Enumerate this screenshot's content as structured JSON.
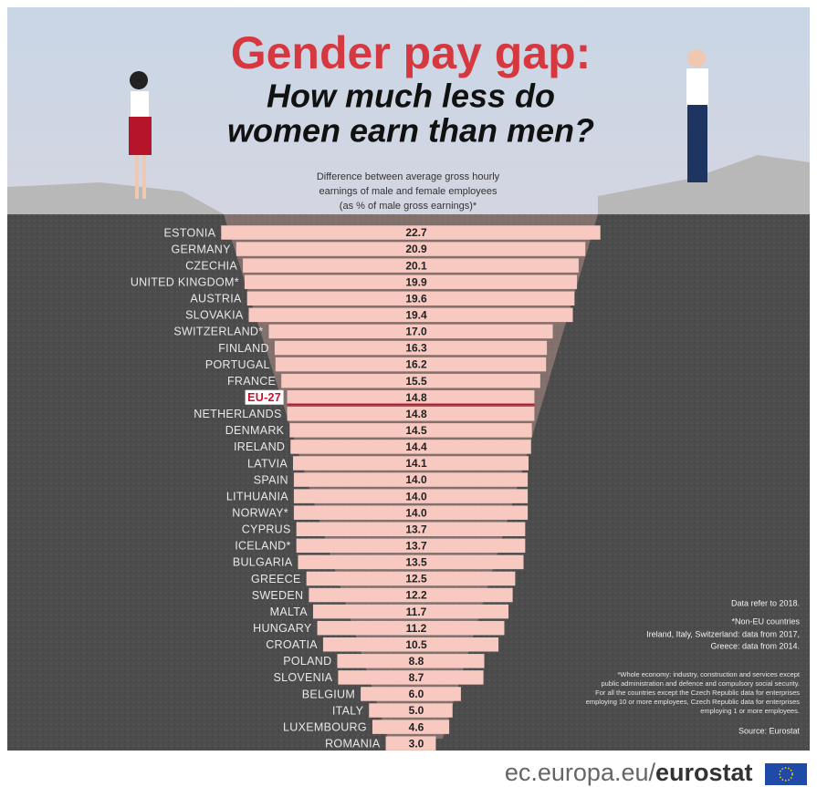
{
  "chart_data": {
    "type": "bar",
    "orientation": "horizontal-centered",
    "title": "Gender pay gap:",
    "subtitle": [
      "How much less do",
      "women earn than men?"
    ],
    "description": [
      "Difference between average gross hourly",
      "earnings of male and female employees",
      "(as % of male gross earnings)*"
    ],
    "categories": [
      "ESTONIA",
      "GERMANY",
      "CZECHIA",
      "UNITED KINGDOM*",
      "AUSTRIA",
      "SLOVAKIA",
      "SWITZERLAND*",
      "FINLAND",
      "PORTUGAL",
      "FRANCE",
      "EU-27",
      "NETHERLANDS",
      "DENMARK",
      "IRELAND",
      "LATVIA",
      "SPAIN",
      "LITHUANIA",
      "NORWAY*",
      "CYPRUS",
      "ICELAND*",
      "BULGARIA",
      "GREECE",
      "SWEDEN",
      "MALTA",
      "HUNGARY",
      "CROATIA",
      "POLAND",
      "SLOVENIA",
      "BELGIUM",
      "ITALY",
      "LUXEMBOURG",
      "ROMANIA"
    ],
    "values": [
      22.7,
      20.9,
      20.1,
      19.9,
      19.6,
      19.4,
      17.0,
      16.3,
      16.2,
      15.5,
      14.8,
      14.8,
      14.5,
      14.4,
      14.1,
      14.0,
      14.0,
      14.0,
      13.7,
      13.7,
      13.5,
      12.5,
      12.2,
      11.7,
      11.2,
      10.5,
      8.8,
      8.7,
      6.0,
      5.0,
      4.6,
      3.0
    ],
    "value_labels": [
      "22.7",
      "20.9",
      "20.1",
      "19.9",
      "19.6",
      "19.4",
      "17.0",
      "16.3",
      "16.2",
      "15.5",
      "14.8",
      "14.8",
      "14.5",
      "14.4",
      "14.1",
      "14.0",
      "14.0",
      "14.0",
      "13.7",
      "13.7",
      "13.5",
      "12.5",
      "12.2",
      "11.7",
      "11.2",
      "10.5",
      "8.8",
      "8.7",
      "6.0",
      "5.0",
      "4.6",
      "3.0"
    ],
    "color": "#f7c9c0",
    "highlight": "EU-27",
    "highlight_color": "#c8102e",
    "notes": [
      "Data refer to 2018.",
      "*Non-EU countries",
      "Ireland, Italy, Switzerland: data from 2017,",
      "Greece: data from 2014."
    ],
    "footnote": [
      "*Whole economy: industry, construction and services except",
      "public administration and defence and compulsory social security.",
      "For all the countries except the Czech Republic data for enterprises",
      "employing 10 or more employees, Czech Republic data for enterprises",
      "employing 1 or more employees."
    ],
    "source": "Source: Eurostat",
    "footer": [
      "ec.europa.eu/",
      "eurostat"
    ]
  }
}
